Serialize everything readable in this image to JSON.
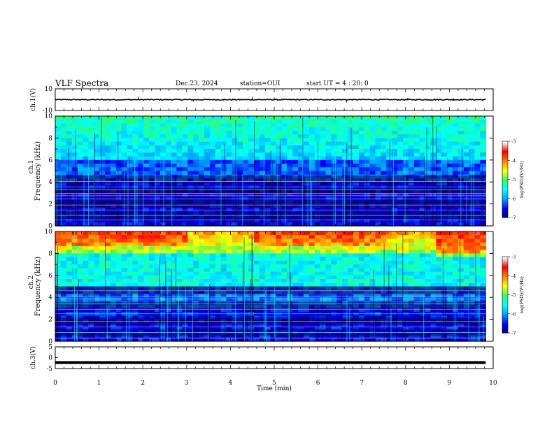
{
  "header": {
    "title": "VLF Spectra",
    "date": "Dec.23, 2024",
    "station": "station=OUI",
    "start": "start  UT =  4 : 20: 0"
  },
  "chart_data": [
    {
      "type": "line",
      "panel": "waveform-ch1",
      "ylabel": "ch.1(V)",
      "yticks": [
        "10",
        "-10"
      ],
      "ylim": [
        -10,
        10
      ],
      "baseline": 0,
      "xlim": [
        0,
        10
      ],
      "data_end": 9.83,
      "spikes": [
        {
          "x": 1.9,
          "y": 2.8
        },
        {
          "x": 3.15,
          "y": -1.8
        },
        {
          "x": 3.85,
          "y": -1.5
        },
        {
          "x": 4.5,
          "y": 2.5
        },
        {
          "x": 5.0,
          "y": 1.8
        },
        {
          "x": 6.65,
          "y": -2.6
        },
        {
          "x": 8.05,
          "y": 1.5
        },
        {
          "x": 9.1,
          "y": 1.2
        }
      ]
    },
    {
      "type": "heatmap",
      "panel": "spectrogram-ch1",
      "ylabel": "Frequency (kHz)",
      "channel_label": "ch.1",
      "yticks": [
        "0",
        "2",
        "4",
        "6",
        "8",
        "10"
      ],
      "ylim": [
        0,
        10
      ],
      "xlim": [
        0,
        10
      ],
      "data_end": 9.83,
      "colorbar": {
        "label": "log(PSD)(V²/Hz)",
        "ticks": [
          "-3",
          "-4",
          "-5",
          "-6",
          "-7"
        ],
        "range": [
          -7,
          -3
        ],
        "colors": [
          "#000080",
          "#0000ff",
          "#00a0ff",
          "#00ffff",
          "#30ff60",
          "#ffff00",
          "#ff8000",
          "#ff0000",
          "#ffffff"
        ]
      }
    },
    {
      "type": "heatmap",
      "panel": "spectrogram-ch2",
      "ylabel": "Frequency (kHz)",
      "channel_label": "ch.2",
      "yticks": [
        "0",
        "2",
        "4",
        "6",
        "8",
        "10"
      ],
      "ylim": [
        0,
        10
      ],
      "xlim": [
        0,
        10
      ],
      "data_end": 9.83,
      "colorbar": {
        "label": "log(PSD)(V²/Hz)",
        "ticks": [
          "-3",
          "-4",
          "-5",
          "-6",
          "-7"
        ],
        "range": [
          -7,
          -3
        ],
        "colors": [
          "#000080",
          "#0000ff",
          "#00a0ff",
          "#00ffff",
          "#30ff60",
          "#ffff00",
          "#ff8000",
          "#ff0000",
          "#ffffff"
        ]
      }
    },
    {
      "type": "line",
      "panel": "waveform-ch3",
      "ylabel": "ch.3(V)",
      "yticks": [
        "5",
        "0",
        "-5"
      ],
      "ylim": [
        -5,
        5
      ],
      "baseline": -2.2,
      "xlim": [
        0,
        10
      ],
      "data_end": 9.83,
      "xlabel": "Time (min)",
      "xticks": [
        "0",
        "1",
        "2",
        "3",
        "4",
        "5",
        "6",
        "7",
        "8",
        "9",
        "10"
      ]
    }
  ]
}
